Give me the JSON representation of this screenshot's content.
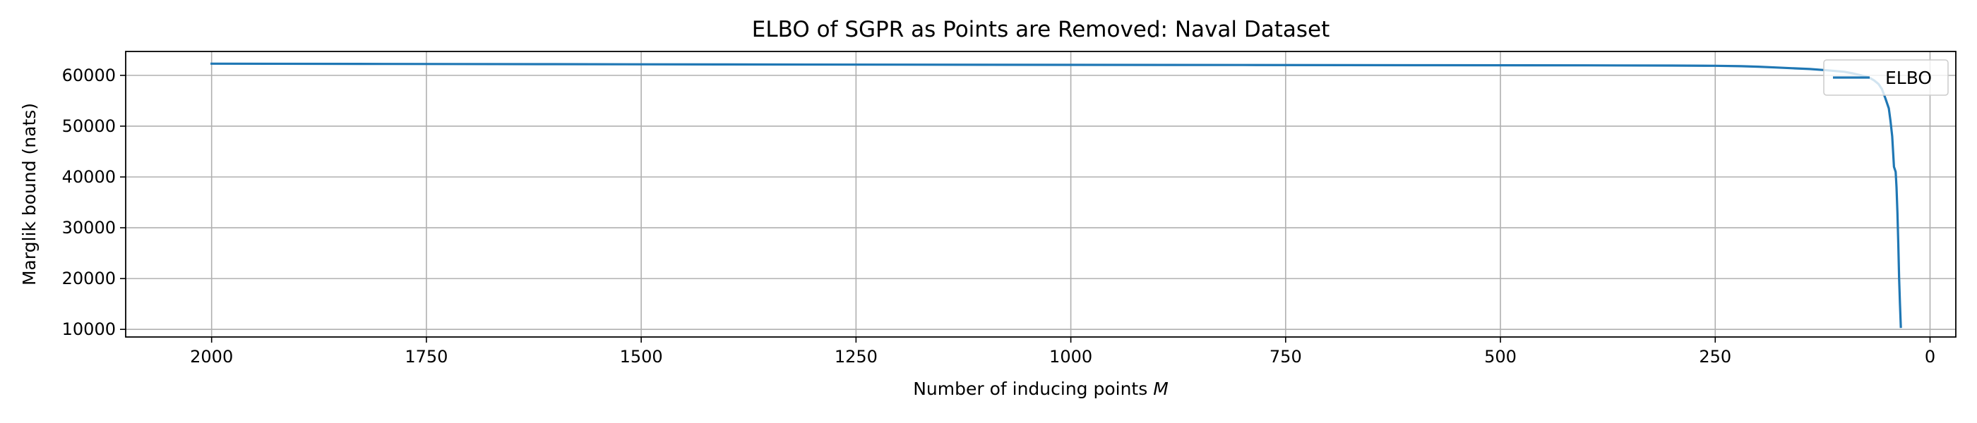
{
  "chart_data": {
    "type": "line",
    "title": "ELBO of SGPR as Points are Removed: Naval Dataset",
    "xlabel": "Number of inducing points",
    "xlabel_var": "M",
    "ylabel": "Marglik bound (nats)",
    "xlim": [
      2100,
      -30
    ],
    "ylim": [
      8500,
      64700
    ],
    "x_reversed": true,
    "grid": true,
    "legend_position": "upper right",
    "x_ticks": [
      2000,
      1750,
      1500,
      1250,
      1000,
      750,
      500,
      250,
      0
    ],
    "x_tick_labels": [
      "2000",
      "1750",
      "1500",
      "1250",
      "1000",
      "750",
      "500",
      "250",
      "0"
    ],
    "y_ticks": [
      10000,
      20000,
      30000,
      40000,
      50000,
      60000
    ],
    "y_tick_labels": [
      "10000",
      "20000",
      "30000",
      "40000",
      "50000",
      "60000"
    ],
    "series": [
      {
        "name": "ELBO",
        "color": "#1f77b4",
        "x": [
          2000,
          1800,
          1600,
          1400,
          1200,
          1000,
          800,
          600,
          400,
          300,
          250,
          220,
          200,
          180,
          160,
          140,
          120,
          100,
          90,
          80,
          70,
          65,
          60,
          56,
          52,
          48,
          46,
          44,
          42,
          40,
          39,
          38,
          37,
          36,
          35,
          34
        ],
        "values": [
          62300,
          62250,
          62200,
          62150,
          62100,
          62070,
          62030,
          62000,
          61970,
          61930,
          61880,
          61800,
          61700,
          61550,
          61400,
          61250,
          61000,
          60700,
          60400,
          60000,
          59500,
          59000,
          58300,
          57300,
          55500,
          53500,
          51000,
          48000,
          42000,
          41000,
          38000,
          33000,
          27000,
          20000,
          15000,
          10500
        ]
      }
    ]
  }
}
